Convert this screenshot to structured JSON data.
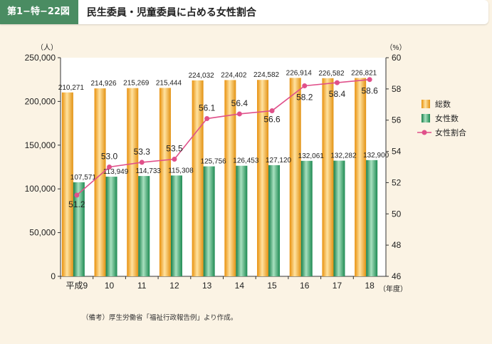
{
  "header": {
    "badge": "第1−特−22図",
    "title": "民生委員・児童委員に占める女性割合"
  },
  "footnote": "（備考）厚生労働省「福祉行政報告例」より作成。",
  "chart_data": {
    "type": "bar",
    "categories": [
      "平成9",
      "10",
      "11",
      "12",
      "13",
      "14",
      "15",
      "16",
      "17",
      "18"
    ],
    "x_unit": "（年度）",
    "y_left": {
      "unit": "（人）",
      "ylim": [
        0,
        250000
      ],
      "ticks": [
        "0",
        "50,000",
        "100,000",
        "150,000",
        "200,000",
        "250,000"
      ]
    },
    "y_right": {
      "unit": "（%）",
      "ylim": [
        46,
        60
      ],
      "ticks": [
        "46",
        "48",
        "50",
        "52",
        "54",
        "56",
        "58",
        "60"
      ]
    },
    "series": [
      {
        "name": "総数",
        "kind": "bar",
        "axis": "left",
        "color": "#f0a020",
        "values": [
          210271,
          214926,
          215269,
          215444,
          224032,
          224402,
          224582,
          226914,
          226582,
          226821
        ],
        "labels": [
          "210,271",
          "214,926",
          "215,269",
          "215,444",
          "224,032",
          "224,402",
          "224,582",
          "226,914",
          "226,582",
          "226,821"
        ]
      },
      {
        "name": "女性数",
        "kind": "bar",
        "axis": "left",
        "color": "#2e9a5e",
        "values": [
          107571,
          113949,
          114733,
          115308,
          125756,
          126453,
          127120,
          132061,
          132282,
          132900
        ],
        "labels": [
          "107,571",
          "113,949",
          "114,733",
          "115,308",
          "125,756",
          "126,453",
          "127,120",
          "132,061",
          "132,282",
          "132,900"
        ]
      },
      {
        "name": "女性割合",
        "kind": "line",
        "axis": "right",
        "color": "#e0508a",
        "values": [
          51.2,
          53.0,
          53.3,
          53.5,
          56.1,
          56.4,
          56.6,
          58.2,
          58.4,
          58.6
        ],
        "labels": [
          "51.2",
          "53.0",
          "53.3",
          "53.5",
          "56.1",
          "56.4",
          "56.6",
          "58.2",
          "58.4",
          "58.6"
        ]
      }
    ],
    "legend_position": "right",
    "grid": false
  }
}
